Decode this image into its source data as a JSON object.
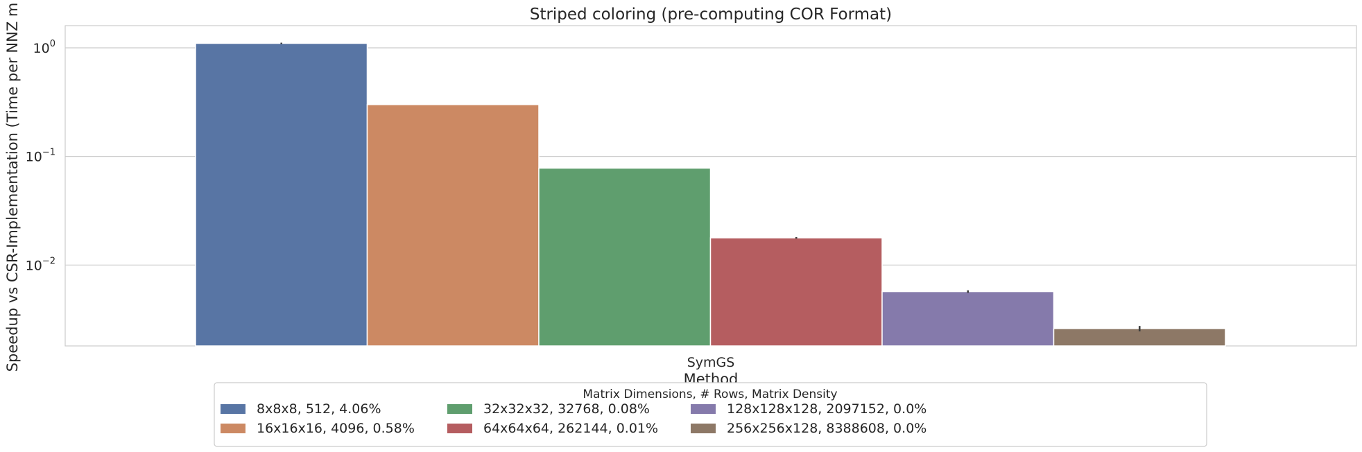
{
  "chart_data": {
    "type": "bar",
    "title": "Striped coloring (pre-computing COR Format)",
    "xlabel": "Method",
    "ylabel": "Speedup vs CSR-Implementation (Time per NNZ m",
    "yscale": "log",
    "ylim": [
      0.0018,
      1.6
    ],
    "yticks": [
      {
        "value": 1,
        "base": "10",
        "exp": "0"
      },
      {
        "value": 0.1,
        "base": "10",
        "exp": "−1"
      },
      {
        "value": 0.01,
        "base": "10",
        "exp": "−2"
      }
    ],
    "grid": true,
    "categories": [
      "SymGS"
    ],
    "series": [
      {
        "name": "8x8x8, 512, 4.06%",
        "values": [
          1.1
        ],
        "err": [
          0.015
        ],
        "color": "#5875a4"
      },
      {
        "name": "16x16x16, 4096, 0.58%",
        "values": [
          0.3
        ],
        "err": [
          0
        ],
        "color": "#cc8963"
      },
      {
        "name": "32x32x32, 32768, 0.08%",
        "values": [
          0.078
        ],
        "err": [
          0
        ],
        "color": "#5f9e6e"
      },
      {
        "name": "64x64x64, 262144, 0.01%",
        "values": [
          0.0178
        ],
        "err": [
          0.0003
        ],
        "color": "#b55d60"
      },
      {
        "name": "128x128x128, 2097152, 0.0%",
        "values": [
          0.0057
        ],
        "err": [
          0.00015
        ],
        "color": "#857aab"
      },
      {
        "name": "256x256x128, 8388608, 0.0%",
        "values": [
          0.0026
        ],
        "err": [
          0.00015
        ],
        "color": "#8d7866"
      }
    ],
    "legend": {
      "title": "Matrix Dimensions, # Rows, Matrix Density",
      "placement": "bottom-center",
      "columns": 4
    }
  }
}
